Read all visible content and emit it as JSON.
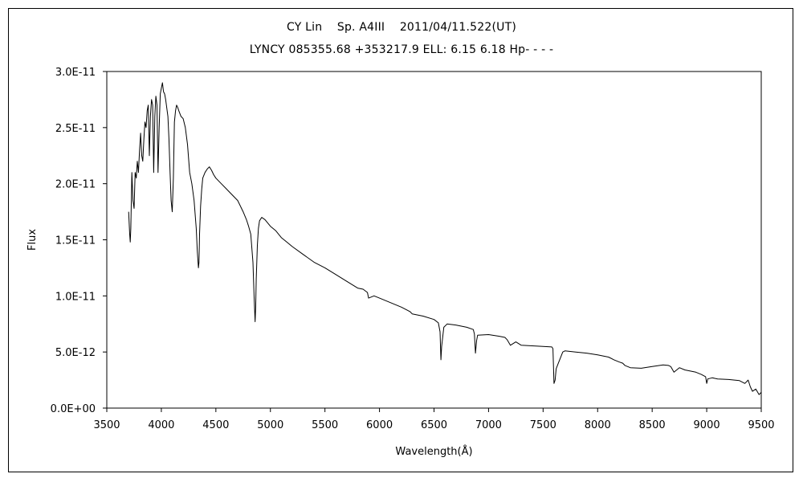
{
  "chart_data": {
    "type": "line",
    "title": "CY Lin    Sp. A4III    2011/04/11.522(UT)",
    "subtitle": "LYNCY 085355.68 +353217.9 ELL: 6.15 6.18 Hp- - - -",
    "xlabel": "Wavelength(Å)",
    "ylabel": "Flux",
    "xlim": [
      3500,
      9500
    ],
    "ylim": [
      0,
      3e-11
    ],
    "x_ticks": [
      3500,
      4000,
      4500,
      5000,
      5500,
      6000,
      6500,
      7000,
      7500,
      8000,
      8500,
      9000,
      9500
    ],
    "x_tick_labels": [
      "3500",
      "4000",
      "4500",
      "5000",
      "5500",
      "6000",
      "6500",
      "7000",
      "7500",
      "8000",
      "8500",
      "9000",
      "9500"
    ],
    "y_ticks": [
      0,
      5e-12,
      1e-11,
      1.5e-11,
      2e-11,
      2.5e-11,
      3e-11
    ],
    "y_tick_labels": [
      "0.0E+00",
      "5.0E-12",
      "1.0E-11",
      "1.5E-11",
      "2.0E-11",
      "2.5E-11",
      "3.0E-11"
    ],
    "grid": false,
    "legend": "none",
    "series": [
      {
        "color": "#000000",
        "x": [
          3700,
          3710,
          3715,
          3720,
          3730,
          3740,
          3750,
          3760,
          3770,
          3780,
          3790,
          3800,
          3810,
          3820,
          3830,
          3840,
          3850,
          3860,
          3870,
          3880,
          3890,
          3900,
          3910,
          3920,
          3930,
          3940,
          3950,
          3960,
          3970,
          3980,
          3990,
          4000,
          4010,
          4020,
          4030,
          4040,
          4060,
          4070,
          4080,
          4090,
          4100,
          4110,
          4120,
          4130,
          4140,
          4150,
          4160,
          4180,
          4200,
          4220,
          4240,
          4260,
          4280,
          4300,
          4320,
          4330,
          4340,
          4345,
          4350,
          4360,
          4370,
          4380,
          4400,
          4420,
          4440,
          4460,
          4480,
          4500,
          4550,
          4600,
          4650,
          4700,
          4750,
          4780,
          4800,
          4820,
          4840,
          4850,
          4860,
          4865,
          4870,
          4880,
          4890,
          4900,
          4920,
          4950,
          5000,
          5050,
          5100,
          5150,
          5200,
          5300,
          5400,
          5500,
          5600,
          5700,
          5800,
          5850,
          5890,
          5900,
          5950,
          6000,
          6100,
          6200,
          6280,
          6300,
          6400,
          6500,
          6540,
          6555,
          6563,
          6570,
          6590,
          6620,
          6700,
          6800,
          6860,
          6870,
          6880,
          6890,
          6900,
          7000,
          7100,
          7150,
          7170,
          7200,
          7250,
          7300,
          7400,
          7500,
          7580,
          7590,
          7600,
          7610,
          7620,
          7640,
          7660,
          7680,
          7700,
          7800,
          7900,
          8000,
          8100,
          8150,
          8200,
          8230,
          8250,
          8300,
          8400,
          8500,
          8600,
          8650,
          8670,
          8700,
          8750,
          8800,
          8850,
          8900,
          8950,
          8990,
          9000,
          9010,
          9050,
          9100,
          9200,
          9300,
          9350,
          9380,
          9400,
          9420,
          9450,
          9480,
          9500
        ],
        "y": [
          1.75e-11,
          1.55e-11,
          1.48e-11,
          1.6e-11,
          2.1e-11,
          1.85e-11,
          1.78e-11,
          2.1e-11,
          2.05e-11,
          2.2e-11,
          2.1e-11,
          2.3e-11,
          2.45e-11,
          2.25e-11,
          2.2e-11,
          2.4e-11,
          2.55e-11,
          2.5e-11,
          2.65e-11,
          2.7e-11,
          2.25e-11,
          2.6e-11,
          2.75e-11,
          2.7e-11,
          2.1e-11,
          2.6e-11,
          2.78e-11,
          2.7e-11,
          2.1e-11,
          2.5e-11,
          2.8e-11,
          2.85e-11,
          2.9e-11,
          2.82e-11,
          2.8e-11,
          2.75e-11,
          2.6e-11,
          2.4e-11,
          2.1e-11,
          1.85e-11,
          1.75e-11,
          2.05e-11,
          2.55e-11,
          2.65e-11,
          2.7e-11,
          2.68e-11,
          2.65e-11,
          2.6e-11,
          2.58e-11,
          2.5e-11,
          2.35e-11,
          2.1e-11,
          2e-11,
          1.85e-11,
          1.6e-11,
          1.4e-11,
          1.25e-11,
          1.3e-11,
          1.55e-11,
          1.8e-11,
          1.95e-11,
          2.05e-11,
          2.1e-11,
          2.13e-11,
          2.15e-11,
          2.12e-11,
          2.08e-11,
          2.05e-11,
          2e-11,
          1.95e-11,
          1.9e-11,
          1.85e-11,
          1.75e-11,
          1.68e-11,
          1.62e-11,
          1.55e-11,
          1.3e-11,
          1e-11,
          7.7e-12,
          9e-12,
          1.15e-11,
          1.45e-11,
          1.6e-11,
          1.67e-11,
          1.7e-11,
          1.68e-11,
          1.62e-11,
          1.58e-11,
          1.52e-11,
          1.48e-11,
          1.44e-11,
          1.37e-11,
          1.3e-11,
          1.25e-11,
          1.19e-11,
          1.13e-11,
          1.07e-11,
          1.06e-11,
          1.03e-11,
          9.8e-12,
          1e-11,
          9.8e-12,
          9.4e-12,
          9e-12,
          8.6e-12,
          8.4e-12,
          8.2e-12,
          7.9e-12,
          7.6e-12,
          6.8e-12,
          4.3e-12,
          5.5e-12,
          7.2e-12,
          7.5e-12,
          7.4e-12,
          7.2e-12,
          7e-12,
          6.6e-12,
          4.9e-12,
          6e-12,
          6.5e-12,
          6.55e-12,
          6.4e-12,
          6.3e-12,
          6.1e-12,
          5.6e-12,
          5.9e-12,
          5.6e-12,
          5.55e-12,
          5.5e-12,
          5.45e-12,
          5.3e-12,
          2.2e-12,
          2.5e-12,
          3.5e-12,
          4e-12,
          4.5e-12,
          5e-12,
          5.1e-12,
          5e-12,
          4.9e-12,
          4.75e-12,
          4.55e-12,
          4.3e-12,
          4.1e-12,
          4e-12,
          3.8e-12,
          3.6e-12,
          3.55e-12,
          3.7e-12,
          3.85e-12,
          3.8e-12,
          3.7e-12,
          3.2e-12,
          3.6e-12,
          3.4e-12,
          3.3e-12,
          3.2e-12,
          3e-12,
          2.8e-12,
          2.2e-12,
          2.6e-12,
          2.7e-12,
          2.6e-12,
          2.55e-12,
          2.45e-12,
          2.2e-12,
          2.5e-12,
          1.9e-12,
          1.5e-12,
          1.7e-12,
          1.2e-12,
          1.4e-12
        ]
      }
    ]
  }
}
